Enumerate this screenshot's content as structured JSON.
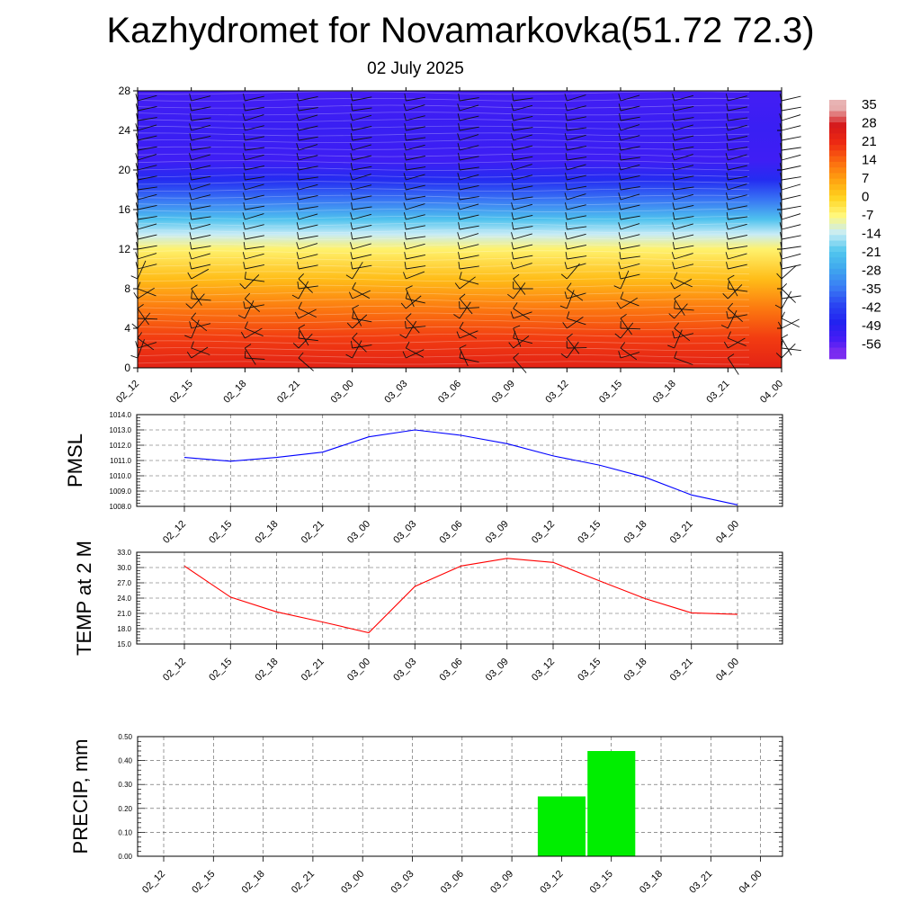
{
  "header": {
    "title": "Kazhydromet for Novamarkovka(51.72 72.3)",
    "subtitle": "02 July 2025"
  },
  "colorbar": {
    "labels": [
      "35",
      "28",
      "21",
      "14",
      "7",
      "0",
      "-7",
      "-14",
      "-21",
      "-28",
      "-35",
      "-42",
      "-49",
      "-56"
    ]
  },
  "chart_data": [
    {
      "type": "heatmap",
      "name": "temperature-cross-section",
      "x_ticks": [
        "02_12",
        "02_15",
        "02_18",
        "02_21",
        "03_00",
        "03_03",
        "03_06",
        "03_09",
        "03_12",
        "03_15",
        "03_18",
        "03_21",
        "04_00"
      ],
      "y_ticks": [
        "0",
        "4",
        "8",
        "12",
        "16",
        "20",
        "24",
        "28"
      ],
      "ylim": [
        0,
        28
      ],
      "color_scale": {
        "min": -56,
        "max": 35,
        "stops": [
          {
            "v": -60,
            "c": "#7b2cf0"
          },
          {
            "v": -56,
            "c": "#4a1cf5"
          },
          {
            "v": -49,
            "c": "#2222f0"
          },
          {
            "v": -42,
            "c": "#2a45f2"
          },
          {
            "v": -35,
            "c": "#3a7df4"
          },
          {
            "v": -28,
            "c": "#3fa7ee"
          },
          {
            "v": -21,
            "c": "#52c7ee"
          },
          {
            "v": -14,
            "c": "#c8ecf6"
          },
          {
            "v": -7,
            "c": "#fff77a"
          },
          {
            "v": 0,
            "c": "#ffd21e"
          },
          {
            "v": 7,
            "c": "#ffa010"
          },
          {
            "v": 14,
            "c": "#fb6a10"
          },
          {
            "v": 21,
            "c": "#ee2a12"
          },
          {
            "v": 28,
            "c": "#d5181a"
          },
          {
            "v": 35,
            "c": "#e8b3b3"
          }
        ]
      },
      "profile": [
        {
          "level": 0,
          "value": 24
        },
        {
          "level": 3,
          "value": 19
        },
        {
          "level": 6,
          "value": 12
        },
        {
          "level": 9,
          "value": 3
        },
        {
          "level": 12,
          "value": -6
        },
        {
          "level": 13.5,
          "value": -14
        },
        {
          "level": 15,
          "value": -22
        },
        {
          "level": 17,
          "value": -36
        },
        {
          "level": 19,
          "value": -47
        },
        {
          "level": 21,
          "value": -54
        },
        {
          "level": 24,
          "value": -53
        },
        {
          "level": 28,
          "value": -55
        }
      ],
      "wind_barb_levels": [
        1,
        2,
        3,
        4,
        5,
        6,
        7,
        8,
        9,
        10,
        11,
        12,
        13,
        14,
        15,
        16,
        17,
        18,
        19,
        20,
        21,
        22,
        23,
        24,
        25,
        26,
        27
      ]
    },
    {
      "type": "line",
      "name": "pmsl",
      "ylabel": "PMSL",
      "x": [
        "02_12",
        "02_15",
        "02_18",
        "02_21",
        "03_00",
        "03_03",
        "03_06",
        "03_09",
        "03_12",
        "03_15",
        "03_18",
        "03_21",
        "04_00"
      ],
      "y_ticks": [
        "1008.0",
        "1009.0",
        "1010.0",
        "1011.0",
        "1012.0",
        "1013.0",
        "1014.0"
      ],
      "ylim": [
        1008,
        1014
      ],
      "color": "#0000ff",
      "values": [
        1011.2,
        1010.95,
        1011.2,
        1011.55,
        1012.55,
        1013.0,
        1012.65,
        1012.1,
        1011.3,
        1010.7,
        1009.9,
        1008.75,
        1008.1
      ]
    },
    {
      "type": "line",
      "name": "temp-2m",
      "ylabel": "TEMP at 2 M",
      "x": [
        "02_12",
        "02_15",
        "02_18",
        "02_21",
        "03_00",
        "03_03",
        "03_06",
        "03_09",
        "03_12",
        "03_15",
        "03_18",
        "03_21",
        "04_00"
      ],
      "y_ticks": [
        "15.0",
        "18.0",
        "21.0",
        "24.0",
        "27.0",
        "30.0",
        "33.0"
      ],
      "ylim": [
        15,
        33
      ],
      "color": "#ff0000",
      "values": [
        30.3,
        24.2,
        21.3,
        19.3,
        17.2,
        26.3,
        30.3,
        31.8,
        31.0,
        27.4,
        23.9,
        21.1,
        20.8
      ]
    },
    {
      "type": "bar",
      "name": "precip",
      "ylabel": "PRECIP, mm",
      "categories": [
        "02_12",
        "02_15",
        "02_18",
        "02_21",
        "03_00",
        "03_03",
        "03_06",
        "03_09",
        "03_12",
        "03_15",
        "03_18",
        "03_21",
        "04_00"
      ],
      "y_ticks": [
        "0.00",
        "0.10",
        "0.20",
        "0.30",
        "0.40",
        "0.50"
      ],
      "ylim": [
        0,
        0.5
      ],
      "color": "#00ee00",
      "values": [
        0,
        0,
        0,
        0,
        0,
        0,
        0,
        0,
        0.25,
        0.44,
        0,
        0,
        0
      ]
    }
  ]
}
